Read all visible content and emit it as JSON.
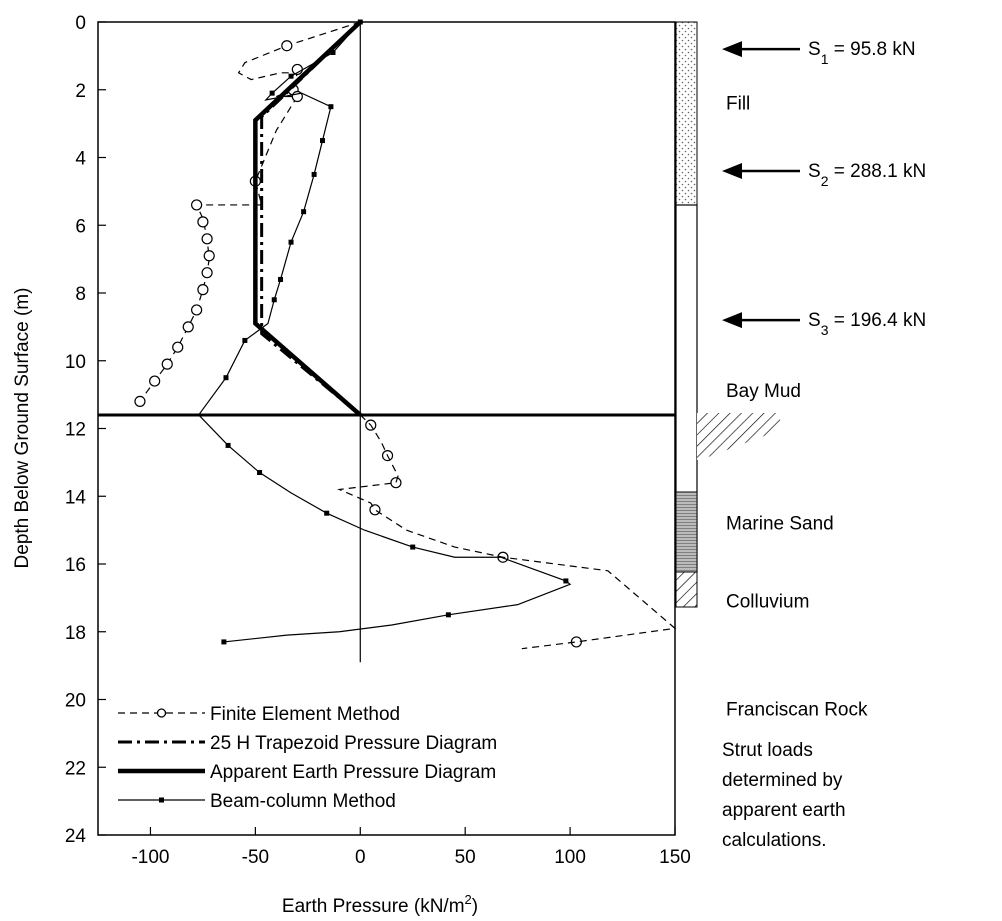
{
  "chart_data": {
    "type": "line",
    "xlabel": "Earth Pressure (kN/m",
    "xlabel_sup": "2",
    "xlabel_end": ")",
    "ylabel": "Depth Below Ground Surface (m)",
    "xlim": [
      -125,
      150
    ],
    "ylim": [
      24,
      0
    ],
    "x_ticks": [
      -100,
      -50,
      0,
      50,
      100,
      150
    ],
    "x_tick_labels": [
      "-100",
      "-50",
      "0",
      "50",
      "100",
      "150"
    ],
    "y_ticks": [
      0,
      2,
      4,
      6,
      8,
      10,
      12,
      14,
      16,
      18,
      20,
      22,
      24
    ],
    "y_tick_labels": [
      "0",
      "2",
      "4",
      "6",
      "8",
      "10",
      "12",
      "14",
      "16",
      "18",
      "20",
      "22",
      "24"
    ],
    "series": [
      {
        "name": "Finite Element Method",
        "style": "dashed-circle",
        "points": [
          [
            0,
            0
          ],
          [
            -35,
            0.7
          ],
          [
            -55,
            1.2
          ],
          [
            -58,
            1.5
          ],
          [
            -52,
            1.7
          ],
          [
            -38,
            1.5
          ],
          [
            -30,
            1.5
          ],
          [
            -32,
            2.0
          ],
          [
            -40,
            2.2
          ],
          [
            -30,
            2.2
          ],
          [
            -40,
            3.2
          ],
          [
            -50,
            4.7
          ],
          [
            -47,
            5.4
          ],
          [
            -78,
            5.4
          ],
          [
            -75,
            5.8
          ],
          [
            -73,
            6.4
          ],
          [
            -72,
            7.0
          ],
          [
            -73,
            7.4
          ],
          [
            -75,
            7.9
          ],
          [
            -78,
            8.5
          ],
          [
            -82,
            9.0
          ],
          [
            -87,
            9.6
          ],
          [
            -92,
            10.1
          ],
          [
            -98,
            10.6
          ],
          [
            -105,
            11.2
          ]
        ],
        "markers": [
          [
            -35,
            0.7
          ],
          [
            -30,
            1.4
          ],
          [
            -32,
            2.0
          ],
          [
            -30,
            2.2
          ],
          [
            -50,
            4.7
          ],
          [
            -78,
            5.4
          ],
          [
            -75,
            5.9
          ],
          [
            -73,
            6.4
          ],
          [
            -72,
            6.9
          ],
          [
            -73,
            7.4
          ],
          [
            -75,
            7.9
          ],
          [
            -78,
            8.5
          ],
          [
            -82,
            9.0
          ],
          [
            -87,
            9.6
          ],
          [
            -92,
            10.1
          ],
          [
            -98,
            10.6
          ],
          [
            -105,
            11.2
          ],
          [
            5,
            11.9
          ],
          [
            13,
            12.8
          ],
          [
            17,
            13.6
          ],
          [
            7,
            14.4
          ],
          [
            68,
            15.8
          ],
          [
            103,
            18.3
          ]
        ]
      },
      {
        "name": "Finite Element Method lower",
        "style": "dashed",
        "points": [
          [
            0,
            11.6
          ],
          [
            5,
            11.9
          ],
          [
            10,
            12.4
          ],
          [
            13,
            12.8
          ],
          [
            18,
            13.4
          ],
          [
            17,
            13.6
          ],
          [
            -10,
            13.8
          ],
          [
            5,
            14.2
          ],
          [
            7,
            14.4
          ],
          [
            22,
            15.0
          ],
          [
            45,
            15.5
          ],
          [
            68,
            15.8
          ],
          [
            118,
            16.2
          ],
          [
            150,
            17.9
          ],
          [
            103,
            18.3
          ],
          [
            77,
            18.5
          ]
        ]
      },
      {
        "name": "25 H Trapezoid Pressure Diagram",
        "style": "dash-dot",
        "points": [
          [
            0,
            0
          ],
          [
            -47,
            2.8
          ],
          [
            -47,
            9.2
          ],
          [
            0,
            11.6
          ]
        ]
      },
      {
        "name": "Apparent Earth Pressure Diagram",
        "style": "thick",
        "points": [
          [
            0,
            0
          ],
          [
            -50,
            2.9
          ],
          [
            -50,
            8.9
          ],
          [
            0,
            11.6
          ]
        ]
      },
      {
        "name": "Beam-column Method",
        "style": "thin-square",
        "points": [
          [
            0,
            0
          ],
          [
            -13,
            0.9
          ],
          [
            -33,
            1.6
          ],
          [
            -42,
            2.1
          ],
          [
            -45,
            2.3
          ],
          [
            -28,
            2.1
          ],
          [
            -14,
            2.5
          ],
          [
            -18,
            3.5
          ],
          [
            -22,
            4.5
          ],
          [
            -27,
            5.6
          ],
          [
            -33,
            6.5
          ],
          [
            -38,
            7.6
          ],
          [
            -41,
            8.2
          ],
          [
            -44,
            8.9
          ],
          [
            -55,
            9.4
          ],
          [
            -64,
            10.5
          ],
          [
            -77,
            11.6
          ],
          [
            -63,
            12.5
          ],
          [
            -48,
            13.3
          ],
          [
            -33,
            13.9
          ],
          [
            -16,
            14.5
          ],
          [
            2,
            15.0
          ],
          [
            25,
            15.5
          ],
          [
            45,
            15.8
          ],
          [
            67,
            15.8
          ],
          [
            98,
            16.5
          ],
          [
            100,
            16.6
          ],
          [
            75,
            17.2
          ],
          [
            42,
            17.5
          ],
          [
            15,
            17.8
          ],
          [
            -10,
            18.0
          ],
          [
            -35,
            18.1
          ],
          [
            -65,
            18.3
          ]
        ],
        "markers": [
          [
            0,
            0
          ],
          [
            -13,
            0.9
          ],
          [
            -33,
            1.6
          ],
          [
            -42,
            2.1
          ],
          [
            -14,
            2.5
          ],
          [
            -18,
            3.5
          ],
          [
            -22,
            4.5
          ],
          [
            -27,
            5.6
          ],
          [
            -33,
            6.5
          ],
          [
            -38,
            7.6
          ],
          [
            -41,
            8.2
          ],
          [
            -55,
            9.4
          ],
          [
            -64,
            10.5
          ],
          [
            -63,
            12.5
          ],
          [
            -48,
            13.3
          ],
          [
            -16,
            14.5
          ],
          [
            25,
            15.5
          ],
          [
            98,
            16.5
          ],
          [
            42,
            17.5
          ],
          [
            -65,
            18.3
          ]
        ]
      }
    ],
    "legend": {
      "placement": "bottom-left",
      "entries": [
        "Finite Element Method",
        "25 H Trapezoid Pressure Diagram",
        "Apparent Earth Pressure Diagram",
        "Beam-column Method"
      ]
    },
    "excavation_depth": 11.6,
    "strut_loads": [
      {
        "label": "S",
        "sub": "1",
        "value": "= 95.8 kN",
        "depth": 0.8
      },
      {
        "label": "S",
        "sub": "2",
        "value": "= 288.1 kN",
        "depth": 4.4
      },
      {
        "label": "S",
        "sub": "3",
        "value": "= 196.4 kN",
        "depth": 8.8
      }
    ],
    "soil_layers": [
      {
        "name": "Fill",
        "depth": 2.4
      },
      {
        "name": "Bay Mud",
        "depth": 10.9
      },
      {
        "name": "Marine Sand",
        "depth": 14.8
      },
      {
        "name": "Colluvium",
        "depth": 17.1
      },
      {
        "name": "Franciscan Rock",
        "depth": 20.3
      }
    ],
    "note": [
      "Strut loads",
      "determined by",
      "apparent earth",
      "calculations."
    ]
  }
}
